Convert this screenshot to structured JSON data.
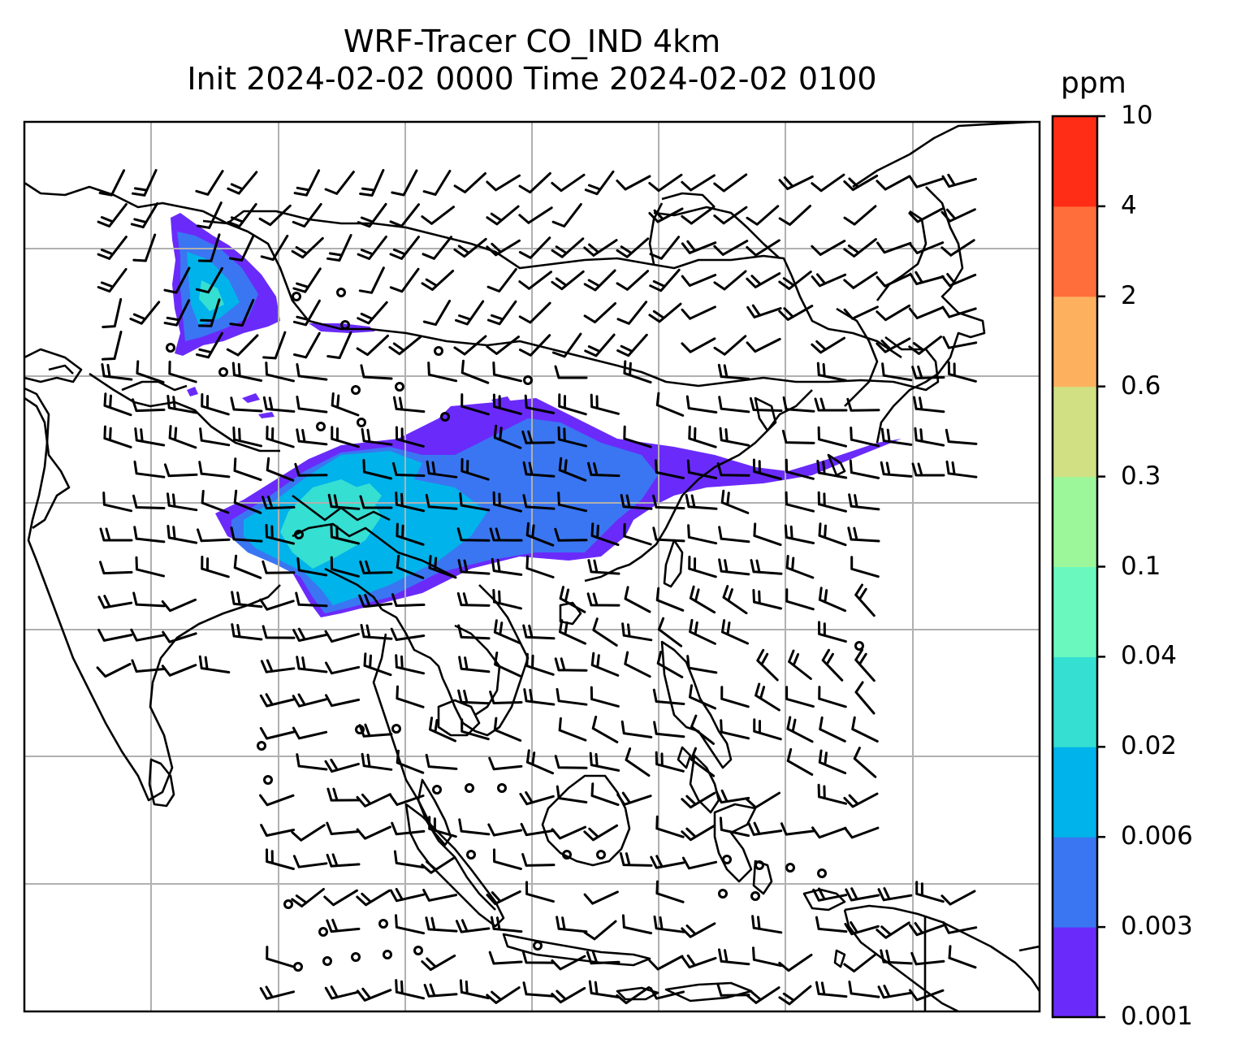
{
  "title": {
    "line1": "WRF-Tracer CO_IND 4km",
    "line2": "Init 2024-02-02 0000 Time 2024-02-02 0100"
  },
  "colorbar": {
    "unit": "ppm",
    "levels": [
      "0.001",
      "0.003",
      "0.006",
      "0.02",
      "0.04",
      "0.1",
      "0.3",
      "0.6",
      "2",
      "4",
      "10"
    ],
    "colors": [
      "#6a2bfa",
      "#3a76f2",
      "#00b3ea",
      "#35dfd2",
      "#6bf8be",
      "#9cf79a",
      "#d0e082",
      "#fdb15f",
      "#ff6e3b",
      "#ff2c16"
    ]
  },
  "map": {
    "grid": "on",
    "background": "#ffffff",
    "coastline_color": "#000000",
    "barb_color": "#000000"
  }
}
